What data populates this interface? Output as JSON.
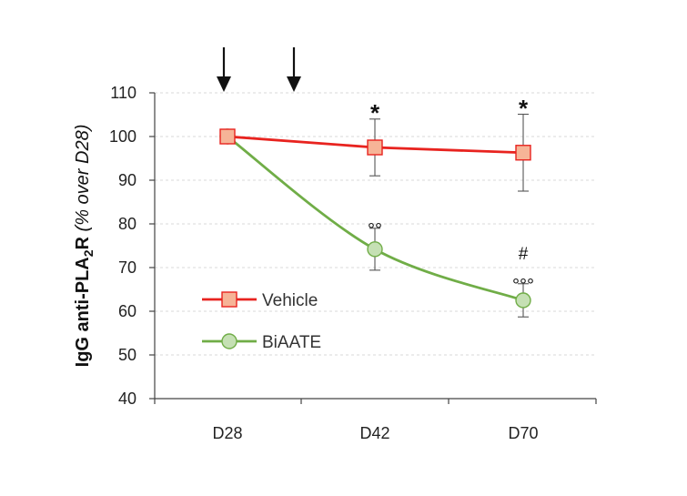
{
  "chart_data": {
    "type": "line",
    "categories": [
      "D28",
      "D42",
      "D70"
    ],
    "ylim": [
      40,
      110
    ],
    "yticks": [
      "40",
      "50",
      "60",
      "70",
      "80",
      "90",
      "100",
      "110"
    ],
    "ylabel": {
      "bold_main": "IgG anti-PLA",
      "subscript": "2",
      "bold_tail": "R",
      "italic": " (% over D28)"
    },
    "grid": true,
    "legend_position": "lower-left",
    "series": [
      {
        "name": "Vehicle",
        "color": "#e8231f",
        "marker": "square",
        "marker_fill": "#f6b497",
        "values": [
          100,
          97.5,
          96.3
        ],
        "err": [
          0,
          6.5,
          8.8
        ],
        "curve": "straight"
      },
      {
        "name": "BiAATE",
        "color": "#70ad47",
        "marker": "circle",
        "marker_fill": "#c5e0b4",
        "values": [
          100,
          74.2,
          62.5
        ],
        "err": [
          0,
          4.8,
          3.8
        ],
        "curve": "smooth"
      }
    ],
    "annotations": [
      {
        "category": "D42",
        "value": 104,
        "text": "*"
      },
      {
        "category": "D70",
        "value": 105,
        "text": "*"
      },
      {
        "category": "D42",
        "value": 79,
        "text": "°°"
      },
      {
        "category": "D70",
        "value": 66.3,
        "text": "°°°"
      },
      {
        "category": "D70",
        "value": 71,
        "text": "#"
      }
    ],
    "arrows": [
      {
        "position": "D28"
      },
      {
        "position": "between D28 and D42"
      }
    ]
  }
}
